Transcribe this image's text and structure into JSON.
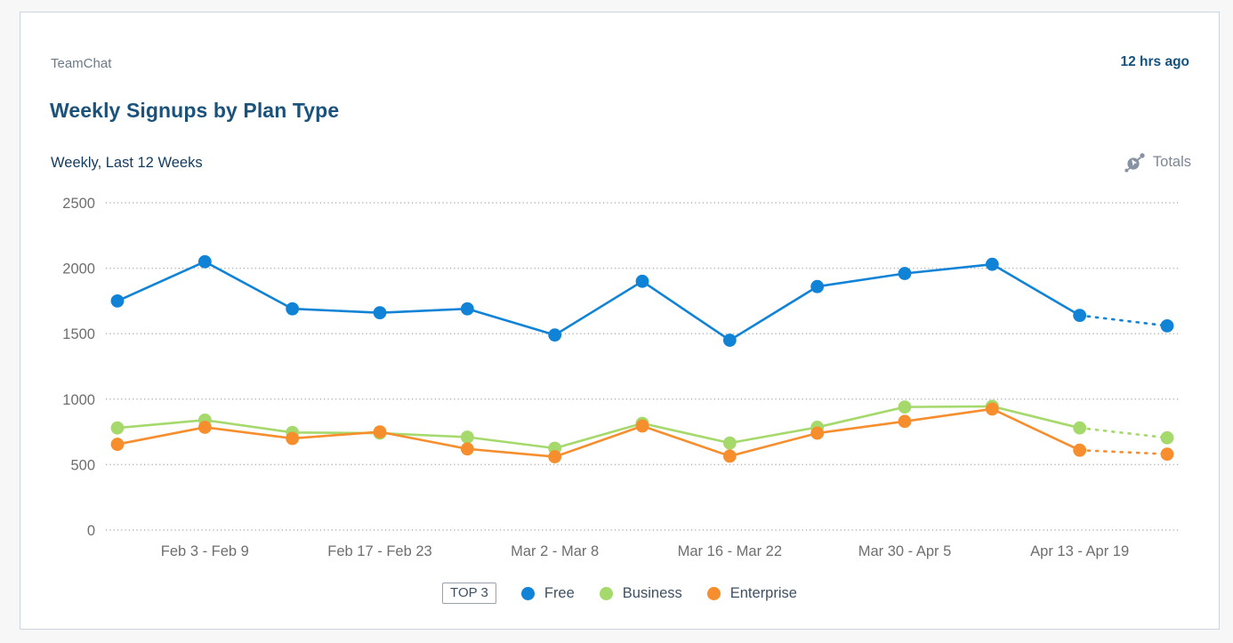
{
  "header": {
    "app_name": "TeamChat",
    "updated": "12 hrs ago"
  },
  "title": "Weekly Signups by Plan Type",
  "subtitle": "Weekly, Last 12 Weeks",
  "totals_label": "Totals",
  "legend": {
    "top_label": "TOP 3",
    "items": [
      {
        "label": "Free",
        "color": "#1083d7"
      },
      {
        "label": "Business",
        "color": "#a5d96c"
      },
      {
        "label": "Enterprise",
        "color": "#f78e2e"
      }
    ]
  },
  "colors": {
    "card_border": "#ccd5dd",
    "page_bg": "#f7f7f7",
    "title_navy": "#1a527c",
    "axis_gray": "#6e6e6e",
    "gridline_gray": "#b3b3b3",
    "icon_gray": "#8793a3"
  },
  "chart_data": {
    "type": "line",
    "title": "Weekly Signups by Plan Type",
    "subtitle": "Weekly, Last 12 Weeks",
    "num_points": 13,
    "x_tick_labels": [
      "Feb 3 - Feb 9",
      "Feb 17 - Feb 23",
      "Mar 2 - Mar 8",
      "Mar 16 - Mar 22",
      "Mar 30 - Apr 5",
      "Apr 13 - Apr 19"
    ],
    "label_point_indices": [
      1,
      3,
      5,
      7,
      9,
      11
    ],
    "ylim": [
      0,
      2500
    ],
    "y_ticks": [
      0,
      500,
      1000,
      1500,
      2000,
      2500
    ],
    "grid": "dotted-horizontal",
    "last_segment_style": "dotted",
    "legend_position": "bottom",
    "series": [
      {
        "name": "Free",
        "color": "#1083d7",
        "values": [
          1750,
          2050,
          1690,
          1660,
          1690,
          1490,
          1900,
          1450,
          1860,
          1960,
          2030,
          1640,
          1560
        ]
      },
      {
        "name": "Business",
        "color": "#a5d96c",
        "values": [
          780,
          840,
          745,
          740,
          710,
          625,
          815,
          665,
          785,
          940,
          945,
          780,
          705
        ]
      },
      {
        "name": "Enterprise",
        "color": "#f78e2e",
        "values": [
          655,
          785,
          700,
          750,
          620,
          560,
          795,
          565,
          740,
          830,
          925,
          610,
          580
        ]
      }
    ]
  }
}
